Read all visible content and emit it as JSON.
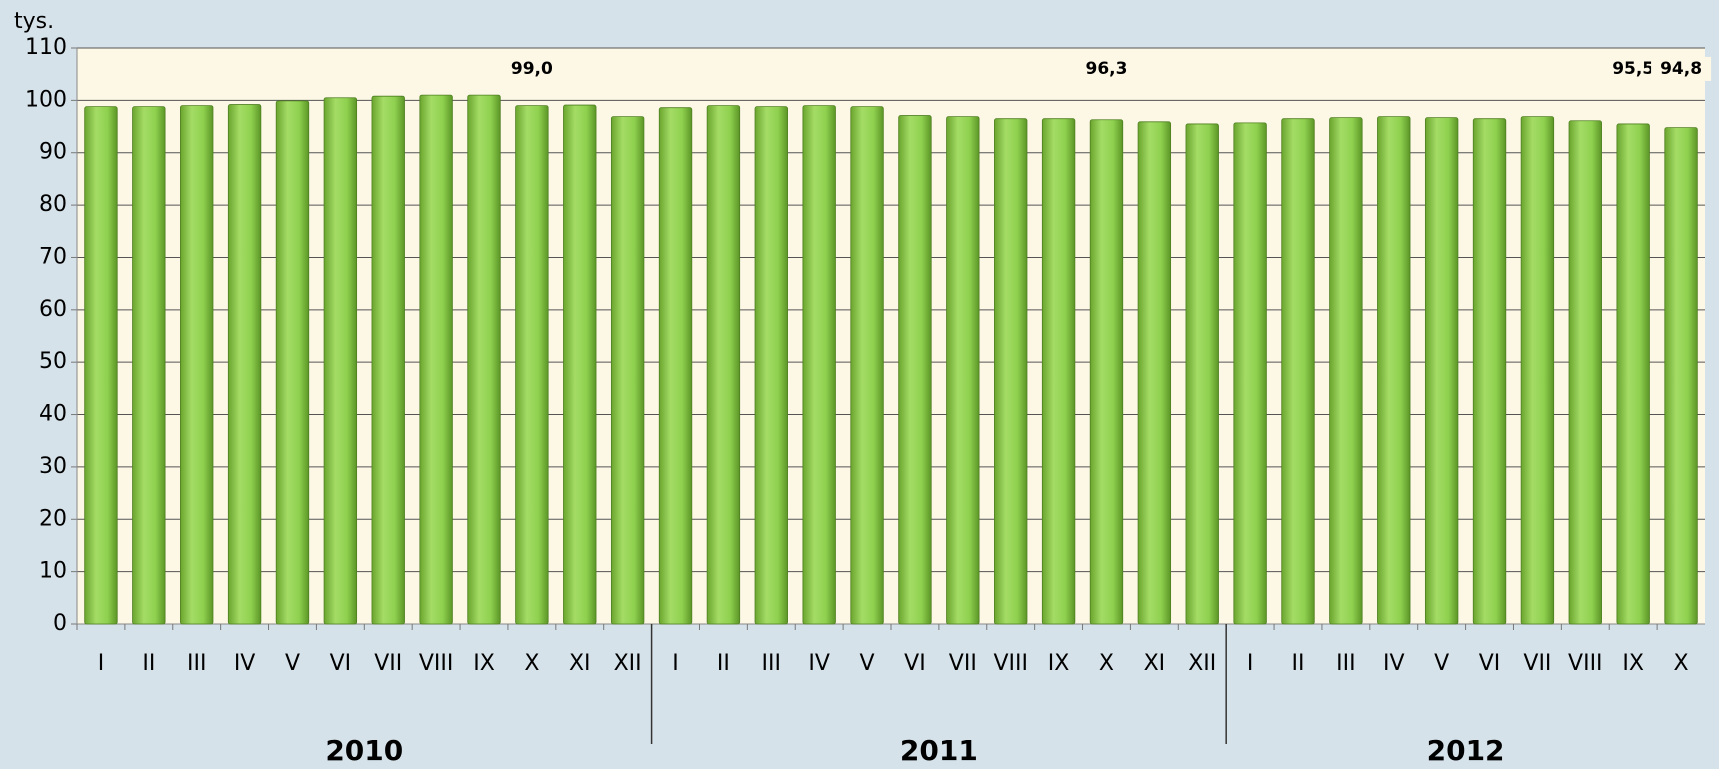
{
  "chart_data": {
    "type": "bar",
    "y_label": "tys.",
    "color": "#8fd14f",
    "groups": [
      {
        "name": "2010",
        "categories": [
          "I",
          "II",
          "III",
          "IV",
          "V",
          "VI",
          "VII",
          "VIII",
          "IX",
          "X",
          "XI",
          "XII"
        ],
        "values": [
          98.8,
          98.8,
          99.0,
          99.2,
          99.9,
          100.5,
          100.8,
          101.0,
          101.0,
          99.0,
          99.1,
          96.9
        ],
        "value_labels": [
          null,
          null,
          null,
          null,
          null,
          null,
          null,
          null,
          null,
          "99,0",
          null,
          null
        ]
      },
      {
        "name": "2011",
        "categories": [
          "I",
          "II",
          "III",
          "IV",
          "V",
          "VI",
          "VII",
          "VIII",
          "IX",
          "X",
          "XI",
          "XII"
        ],
        "values": [
          98.6,
          99.0,
          98.8,
          99.0,
          98.8,
          97.1,
          96.9,
          96.5,
          96.5,
          96.3,
          95.9,
          95.5
        ],
        "value_labels": [
          null,
          null,
          null,
          null,
          null,
          null,
          null,
          null,
          null,
          "96,3",
          null,
          null
        ]
      },
      {
        "name": "2012",
        "categories": [
          "I",
          "II",
          "III",
          "IV",
          "V",
          "VI",
          "VII",
          "VIII",
          "IX",
          "X"
        ],
        "values": [
          95.7,
          96.5,
          96.7,
          96.9,
          96.7,
          96.5,
          96.9,
          96.1,
          95.5,
          94.8
        ],
        "value_labels": [
          null,
          null,
          null,
          null,
          null,
          null,
          null,
          null,
          "95,5",
          "94,8"
        ]
      }
    ],
    "ylim": [
      0,
      110
    ],
    "yticks": [
      0,
      10,
      20,
      30,
      40,
      50,
      60,
      70,
      80,
      90,
      100,
      110
    ],
    "grid": true
  }
}
